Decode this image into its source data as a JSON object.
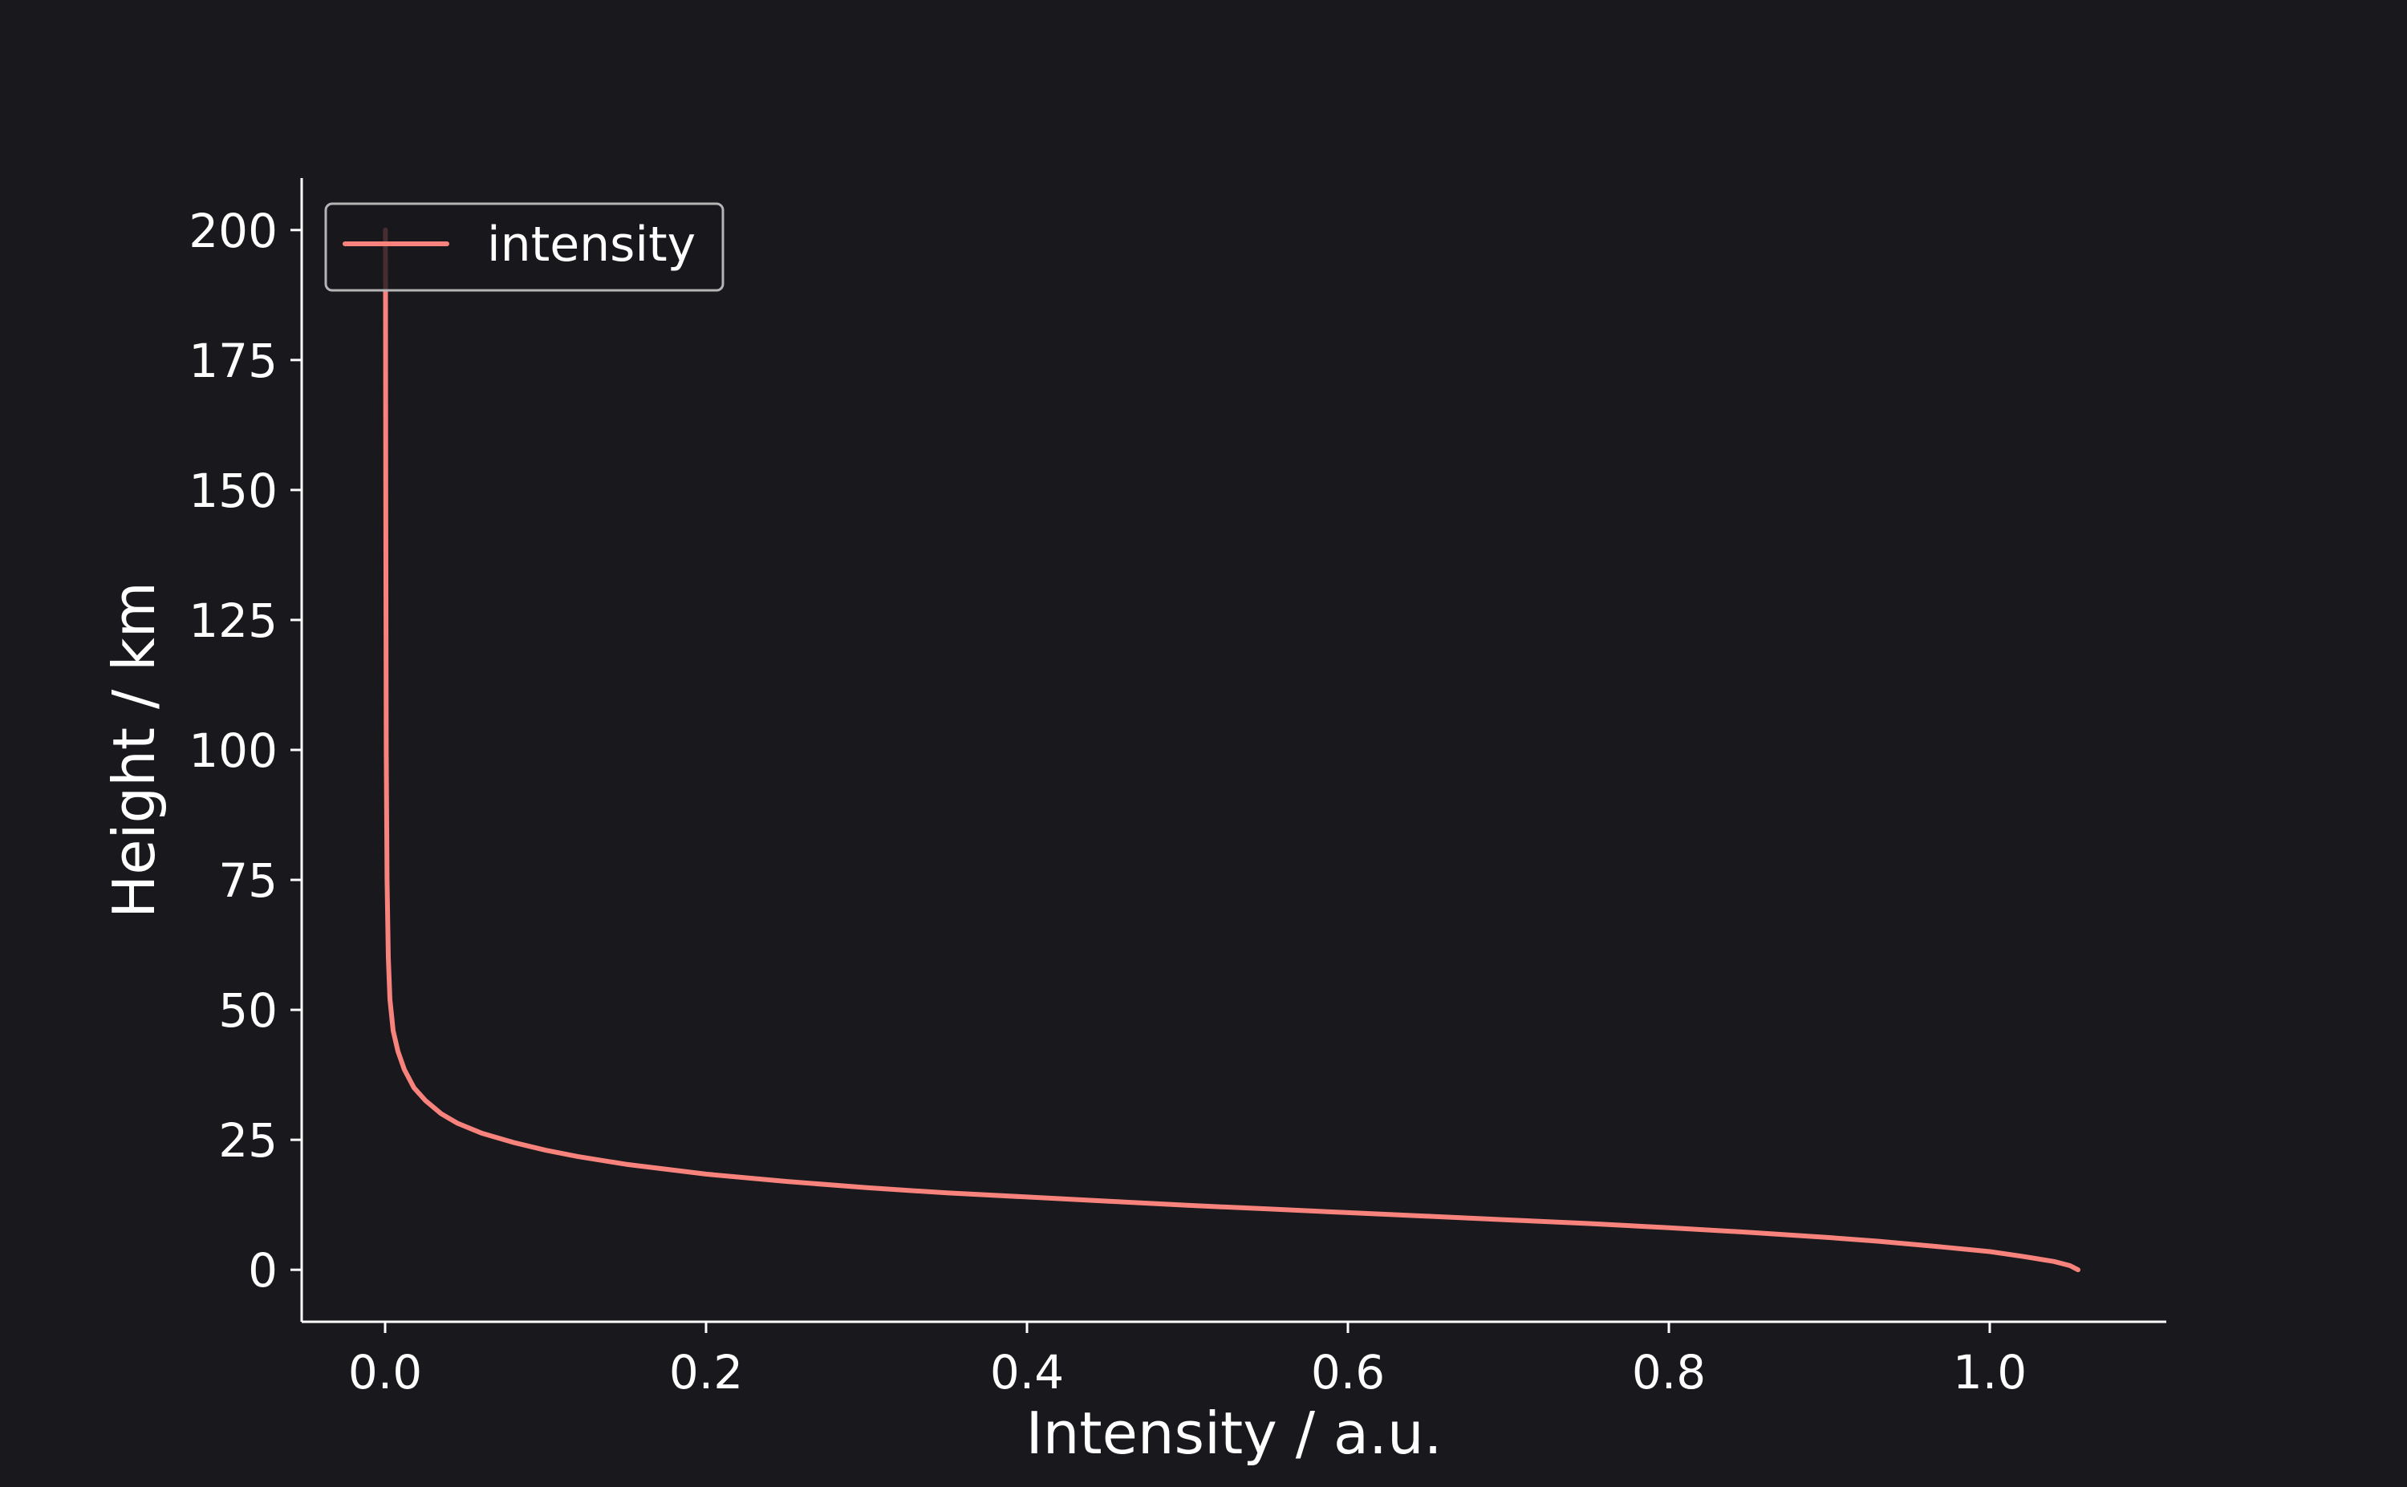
{
  "colors": {
    "background": "#18181d",
    "axis": "#ffffff",
    "text": "#ffffff",
    "series": "#f8837c",
    "legend_border": "#b5b5b5"
  },
  "chart_data": {
    "type": "line",
    "title": "",
    "xlabel": "Intensity / a.u.",
    "ylabel": "Height / km",
    "xlim": [
      -0.052,
      1.11
    ],
    "ylim": [
      -10,
      210
    ],
    "x_ticks": [
      0.0,
      0.2,
      0.4,
      0.6,
      0.8,
      1.0
    ],
    "x_tick_labels": [
      "0.0",
      "0.2",
      "0.4",
      "0.6",
      "0.8",
      "1.0"
    ],
    "y_ticks": [
      0,
      25,
      50,
      75,
      100,
      125,
      150,
      175,
      200
    ],
    "y_tick_labels": [
      "0",
      "25",
      "50",
      "75",
      "100",
      "125",
      "150",
      "175",
      "200"
    ],
    "grid": false,
    "legend": {
      "position": "top-left",
      "entries": [
        "intensity"
      ]
    },
    "series": [
      {
        "name": "intensity",
        "points": [
          [
            1.055,
            0
          ],
          [
            1.05,
            0.8
          ],
          [
            1.04,
            1.6
          ],
          [
            1.02,
            2.6
          ],
          [
            1.0,
            3.5
          ],
          [
            0.97,
            4.4
          ],
          [
            0.93,
            5.5
          ],
          [
            0.9,
            6.2
          ],
          [
            0.85,
            7.2
          ],
          [
            0.8,
            8.1
          ],
          [
            0.75,
            8.9
          ],
          [
            0.7,
            9.6
          ],
          [
            0.65,
            10.3
          ],
          [
            0.6,
            11.0
          ],
          [
            0.55,
            11.7
          ],
          [
            0.5,
            12.4
          ],
          [
            0.45,
            13.2
          ],
          [
            0.4,
            14.0
          ],
          [
            0.35,
            14.8
          ],
          [
            0.3,
            15.8
          ],
          [
            0.25,
            17.0
          ],
          [
            0.2,
            18.4
          ],
          [
            0.15,
            20.3
          ],
          [
            0.12,
            21.8
          ],
          [
            0.1,
            23.0
          ],
          [
            0.08,
            24.5
          ],
          [
            0.06,
            26.3
          ],
          [
            0.045,
            28.2
          ],
          [
            0.035,
            30.0
          ],
          [
            0.025,
            32.6
          ],
          [
            0.018,
            35.0
          ],
          [
            0.012,
            38.5
          ],
          [
            0.008,
            42.0
          ],
          [
            0.005,
            46.0
          ],
          [
            0.003,
            52.0
          ],
          [
            0.002,
            60.0
          ],
          [
            0.0012,
            75.0
          ],
          [
            0.0007,
            100.0
          ],
          [
            0.0004,
            150.0
          ],
          [
            0.0002,
            200.0
          ]
        ]
      }
    ]
  }
}
